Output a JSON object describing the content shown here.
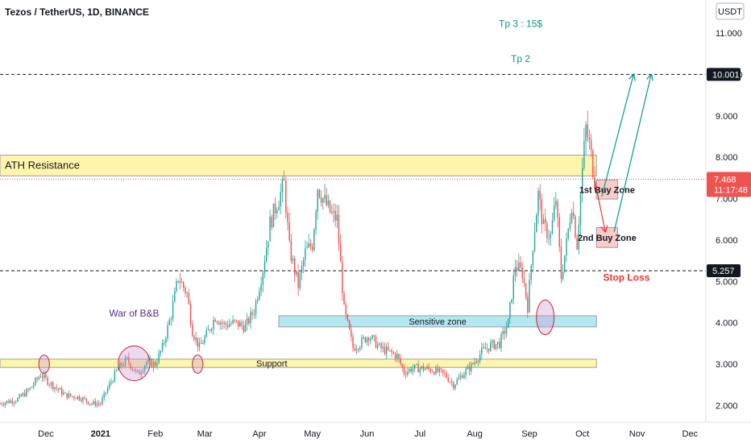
{
  "header": {
    "symbol_title": "Tezos / TetherUS, 1D, BINANCE",
    "currency_button": "USDT"
  },
  "colors": {
    "up": "#26a69a",
    "down": "#ef5350",
    "text_dark": "#131722",
    "axis_text": "#131722",
    "teal_label": "#089981",
    "red_label": "#e53935",
    "purple_label": "#5b2c83"
  },
  "chart_data": {
    "type": "candlestick",
    "title": "Tezos / TetherUS, 1D, BINANCE",
    "ylim": [
      1.6,
      11.8
    ],
    "yticks": [
      "2.000",
      "3.000",
      "4.000",
      "5.000",
      "6.000",
      "7.000",
      "8.000",
      "9.000",
      "10.000",
      "11.000"
    ],
    "ytick_values": [
      2,
      3,
      4,
      5,
      6,
      7,
      8,
      9,
      10,
      11
    ],
    "xticks": [
      "Dec",
      "2021",
      "Feb",
      "Mar",
      "Apr",
      "May",
      "Jun",
      "Jul",
      "Aug",
      "Sep",
      "Oct",
      "Nov",
      "Dec"
    ],
    "xtick_dates": [
      "2020-12-01",
      "2021-01-01",
      "2021-02-01",
      "2021-03-01",
      "2021-04-01",
      "2021-05-01",
      "2021-06-01",
      "2021-07-01",
      "2021-08-01",
      "2021-09-01",
      "2021-10-01",
      "2021-11-01",
      "2021-12-01"
    ],
    "start_date": "2020-11-05",
    "end_date": "2021-10-08",
    "x_range": [
      "2020-11-05",
      "2021-12-10"
    ],
    "grid": false,
    "legend": "none",
    "close_path": [
      [
        "2020-11-05",
        2.05
      ],
      [
        "2020-11-15",
        2.15
      ],
      [
        "2020-11-22",
        2.4
      ],
      [
        "2020-11-28",
        2.75
      ],
      [
        "2020-12-03",
        2.55
      ],
      [
        "2020-12-12",
        2.25
      ],
      [
        "2020-12-20",
        2.2
      ],
      [
        "2020-12-27",
        2.05
      ],
      [
        "2021-01-01",
        2.05
      ],
      [
        "2021-01-06",
        2.5
      ],
      [
        "2021-01-11",
        2.9
      ],
      [
        "2021-01-16",
        3.1
      ],
      [
        "2021-01-22",
        2.75
      ],
      [
        "2021-01-27",
        3.05
      ],
      [
        "2021-02-01",
        3.0
      ],
      [
        "2021-02-05",
        3.4
      ],
      [
        "2021-02-10",
        4.2
      ],
      [
        "2021-02-14",
        5.1
      ],
      [
        "2021-02-19",
        4.7
      ],
      [
        "2021-02-22",
        3.8
      ],
      [
        "2021-02-26",
        3.4
      ],
      [
        "2021-03-02",
        3.7
      ],
      [
        "2021-03-07",
        4.15
      ],
      [
        "2021-03-12",
        3.95
      ],
      [
        "2021-03-18",
        4.0
      ],
      [
        "2021-03-24",
        3.9
      ],
      [
        "2021-03-29",
        4.3
      ],
      [
        "2021-04-03",
        5.3
      ],
      [
        "2021-04-07",
        6.4
      ],
      [
        "2021-04-11",
        6.9
      ],
      [
        "2021-04-15",
        7.35
      ],
      [
        "2021-04-18",
        5.8
      ],
      [
        "2021-04-23",
        4.9
      ],
      [
        "2021-04-27",
        5.7
      ],
      [
        "2021-05-01",
        5.9
      ],
      [
        "2021-05-04",
        7.3
      ],
      [
        "2021-05-07",
        7.0
      ],
      [
        "2021-05-12",
        6.6
      ],
      [
        "2021-05-15",
        6.5
      ],
      [
        "2021-05-19",
        4.3
      ],
      [
        "2021-05-24",
        3.4
      ],
      [
        "2021-05-28",
        3.5
      ],
      [
        "2021-06-02",
        3.7
      ],
      [
        "2021-06-08",
        3.4
      ],
      [
        "2021-06-13",
        3.3
      ],
      [
        "2021-06-18",
        3.2
      ],
      [
        "2021-06-22",
        2.8
      ],
      [
        "2021-06-27",
        2.9
      ],
      [
        "2021-07-03",
        2.9
      ],
      [
        "2021-07-09",
        2.85
      ],
      [
        "2021-07-15",
        2.75
      ],
      [
        "2021-07-20",
        2.5
      ],
      [
        "2021-07-25",
        2.75
      ],
      [
        "2021-07-30",
        2.95
      ],
      [
        "2021-08-05",
        3.3
      ],
      [
        "2021-08-10",
        3.45
      ],
      [
        "2021-08-15",
        3.5
      ],
      [
        "2021-08-20",
        4.0
      ],
      [
        "2021-08-24",
        5.4
      ],
      [
        "2021-08-28",
        5.2
      ],
      [
        "2021-08-31",
        4.4
      ],
      [
        "2021-09-03",
        5.9
      ],
      [
        "2021-09-06",
        7.1
      ],
      [
        "2021-09-09",
        6.3
      ],
      [
        "2021-09-13",
        6.1
      ],
      [
        "2021-09-16",
        7.0
      ],
      [
        "2021-09-19",
        5.1
      ],
      [
        "2021-09-22",
        5.9
      ],
      [
        "2021-09-25",
        6.9
      ],
      [
        "2021-09-28",
        5.9
      ],
      [
        "2021-10-01",
        7.7
      ],
      [
        "2021-10-03",
        8.7
      ],
      [
        "2021-10-05",
        8.3
      ],
      [
        "2021-10-08",
        7.47
      ]
    ],
    "horizontal_lines": [
      {
        "price": 10.001,
        "label": "10.001",
        "style": "dashed"
      },
      {
        "price": 5.257,
        "label": "5.257",
        "style": "dashed"
      },
      {
        "price": 7.468,
        "label": "7.468",
        "sublabel": "11:17:48",
        "style": "dotted-current"
      }
    ],
    "zones": [
      {
        "label": "ATH Resistance",
        "from": "2020-11-05",
        "to": "2021-10-09",
        "low": 7.55,
        "high": 8.05,
        "fill": "#fff59d"
      },
      {
        "label": "Sensitive zone",
        "from": "2021-04-12",
        "to": "2021-10-09",
        "low": 3.9,
        "high": 4.17,
        "fill": "#a6e3ef"
      },
      {
        "label": "Support",
        "from": "2020-11-05",
        "to": "2021-10-09",
        "low": 2.92,
        "high": 3.12,
        "fill": "#fff59d"
      },
      {
        "label": "1st Buy Zone",
        "from": "2021-10-09",
        "to": "2021-10-21",
        "low": 6.99,
        "high": 7.45,
        "fill": "#f8c2bf"
      },
      {
        "label": "2nd Buy Zone",
        "from": "2021-10-09",
        "to": "2021-10-21",
        "low": 5.82,
        "high": 6.3,
        "fill": "#f8c2bf"
      }
    ],
    "annotations": [
      {
        "text": "Tp 3 : 15$",
        "date": "2021-08-27",
        "price": 11.15,
        "color": "teal"
      },
      {
        "text": "Tp 2",
        "date": "2021-08-27",
        "price": 10.3,
        "color": "teal"
      },
      {
        "text": "War of B&B",
        "date": "2021-01-20",
        "price": 4.15,
        "color": "purple"
      },
      {
        "text": "Stop Loss",
        "date": "2021-10-26",
        "price": 5.02,
        "color": "red"
      }
    ],
    "ellipses": [
      {
        "date": "2020-11-30",
        "price": 3.0,
        "rx_days": 3,
        "ry_price": 0.22
      },
      {
        "date": "2021-01-20",
        "price": 3.02,
        "rx_days": 9,
        "ry_price": 0.42
      },
      {
        "date": "2021-02-25",
        "price": 3.0,
        "rx_days": 3,
        "ry_price": 0.22
      },
      {
        "date": "2021-09-10",
        "price": 4.13,
        "rx_days": 5,
        "ry_price": 0.42
      }
    ],
    "arrows": [
      {
        "from": [
          "2021-10-08",
          7.45
        ],
        "to": [
          "2021-10-14",
          6.2
        ],
        "color": "red"
      },
      {
        "from": [
          "2021-10-12",
          7.05
        ],
        "to": [
          "2021-10-30",
          10.0
        ],
        "color": "teal"
      },
      {
        "from": [
          "2021-10-19",
          6.2
        ],
        "to": [
          "2021-11-09",
          10.0
        ],
        "color": "teal"
      }
    ]
  }
}
